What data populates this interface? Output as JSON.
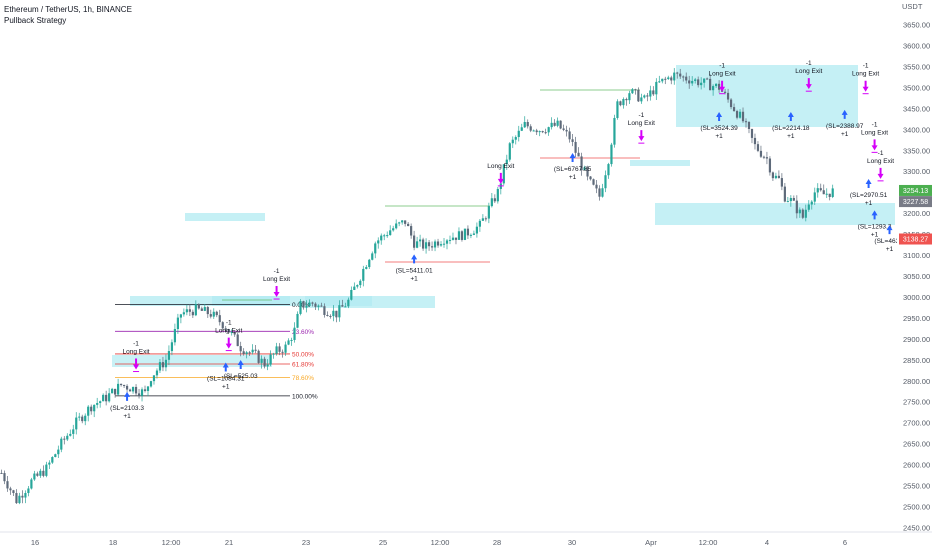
{
  "header": {
    "title": "Ethereum / TetherUS, 1h, BINANCE",
    "subtitle": "Pullback Strategy"
  },
  "colors": {
    "up": "#26a69a",
    "down": "#5e6a7a",
    "zone": "#b2ebf2",
    "buy_arrow": "#2962ff",
    "sell_arrow": "#d500f9",
    "last_price_bg": "#4caf50",
    "current_bg": "#787b86",
    "stop_bg": "#ef5350"
  },
  "chart_data": {
    "type": "candlestick",
    "currency_label": "USDT",
    "x_labels": [
      "16",
      "18",
      "12:00",
      "21",
      "23",
      "25",
      "12:00",
      "28",
      "30",
      "Apr",
      "12:00",
      "4",
      "6"
    ],
    "y_ticks": [
      2450,
      2500,
      2550,
      2600,
      2650,
      2700,
      2750,
      2800,
      2850,
      2900,
      2950,
      3000,
      3050,
      3100,
      3150,
      3200,
      3250,
      3300,
      3350,
      3400,
      3450,
      3500,
      3550,
      3600,
      3650
    ],
    "ylim": [
      2420,
      3680
    ],
    "price_path": [
      [
        0,
        2580
      ],
      [
        5,
        2515
      ],
      [
        10,
        2560
      ],
      [
        15,
        2590
      ],
      [
        20,
        2650
      ],
      [
        25,
        2700
      ],
      [
        30,
        2740
      ],
      [
        35,
        2760
      ],
      [
        40,
        2790
      ],
      [
        45,
        2780
      ],
      [
        48,
        2770
      ],
      [
        50,
        2810
      ],
      [
        55,
        2850
      ],
      [
        60,
        2960
      ],
      [
        65,
        2970
      ],
      [
        70,
        2960
      ],
      [
        75,
        2930
      ],
      [
        80,
        2880
      ],
      [
        85,
        2860
      ],
      [
        88,
        2840
      ],
      [
        92,
        2870
      ],
      [
        95,
        2880
      ],
      [
        98,
        2920
      ],
      [
        100,
        2980
      ],
      [
        104,
        2985
      ],
      [
        108,
        2970
      ],
      [
        112,
        2960
      ],
      [
        116,
        2990
      ],
      [
        120,
        3050
      ],
      [
        125,
        3130
      ],
      [
        130,
        3160
      ],
      [
        135,
        3180
      ],
      [
        138,
        3130
      ],
      [
        142,
        3120
      ],
      [
        148,
        3140
      ],
      [
        155,
        3150
      ],
      [
        160,
        3170
      ],
      [
        163,
        3210
      ],
      [
        166,
        3250
      ],
      [
        170,
        3360
      ],
      [
        175,
        3410
      ],
      [
        180,
        3400
      ],
      [
        186,
        3410
      ],
      [
        190,
        3380
      ],
      [
        193,
        3330
      ],
      [
        196,
        3280
      ],
      [
        200,
        3240
      ],
      [
        203,
        3330
      ],
      [
        206,
        3460
      ],
      [
        210,
        3490
      ],
      [
        215,
        3470
      ],
      [
        220,
        3510
      ],
      [
        225,
        3530
      ],
      [
        230,
        3520
      ],
      [
        235,
        3510
      ],
      [
        240,
        3500
      ],
      [
        244,
        3460
      ],
      [
        248,
        3420
      ],
      [
        252,
        3360
      ],
      [
        256,
        3330
      ],
      [
        258,
        3290
      ],
      [
        260,
        3280
      ],
      [
        262,
        3240
      ],
      [
        264,
        3230
      ],
      [
        266,
        3210
      ],
      [
        268,
        3190
      ],
      [
        270,
        3230
      ],
      [
        272,
        3250
      ],
      [
        275,
        3245
      ],
      [
        278,
        3252
      ]
    ],
    "stop_levels": [
      {
        "label": "(SL=2103.3",
        "sub": "+1",
        "bar": 42,
        "price": 2752
      },
      {
        "label": "(SL=1084.31",
        "sub": "+1",
        "bar": 75,
        "price": 2822
      },
      {
        "label": "(SL=525.03",
        "sub": "",
        "bar": 80,
        "price": 2828
      },
      {
        "label": "(SL=5411.01",
        "sub": "+1",
        "bar": 138,
        "price": 3080
      },
      {
        "label": "(SL=6767.85",
        "sub": "+1",
        "bar": 191,
        "price": 3322
      },
      {
        "label": "(SL=3524.39",
        "sub": "+1",
        "bar": 240,
        "price": 3420
      },
      {
        "label": "(SL=2214.18",
        "sub": "+1",
        "bar": 264,
        "price": 3420
      },
      {
        "label": "(SL=2388.97",
        "sub": "+1",
        "bar": 282,
        "price": 3425
      },
      {
        "label": "(SL=2970.51",
        "sub": "+1",
        "bar": 290,
        "price": 3260
      },
      {
        "label": "(SL=1293.3",
        "sub": "+1",
        "bar": 292,
        "price": 3185
      },
      {
        "label": "(SL=4634.",
        "sub": "+1",
        "bar": 297,
        "price": 3150
      }
    ],
    "exit_labels": [
      {
        "label": "Long Exit",
        "top": "-1",
        "bar": 45,
        "price": 2865
      },
      {
        "label": "Long Exit",
        "top": "-1",
        "bar": 76,
        "price": 2915
      },
      {
        "label": "Long Exit",
        "top": "-1",
        "bar": 92,
        "price": 3038
      },
      {
        "label": "Long Exit",
        "top": "",
        "bar": 167,
        "price": 3308
      },
      {
        "label": "Long Exit",
        "top": "-1",
        "bar": 214,
        "price": 3410
      },
      {
        "label": "Long Exit",
        "top": "-1",
        "bar": 241,
        "price": 3528
      },
      {
        "label": "Long Exit",
        "top": "-1",
        "bar": 270,
        "price": 3534
      },
      {
        "label": "Long Exit",
        "top": "-1",
        "bar": 289,
        "price": 3528
      },
      {
        "label": "Long Exit",
        "top": "-1",
        "bar": 292,
        "price": 3388
      },
      {
        "label": "Long Exit",
        "top": "-1",
        "bar": 294,
        "price": 3320
      }
    ],
    "fib_levels": [
      {
        "label": "0.00%",
        "price": 2982,
        "color": "#131722"
      },
      {
        "label": "23.60%",
        "price": 2918,
        "color": "#9c27b0"
      },
      {
        "label": "50.00%",
        "price": 2864,
        "color": "#e53935"
      },
      {
        "label": "61.80%",
        "price": 2840,
        "color": "#e53935"
      },
      {
        "label": "78.60%",
        "price": 2808,
        "color": "#f9a825"
      },
      {
        "label": "100.00%",
        "price": 2764,
        "color": "#131722"
      }
    ],
    "price_labels": {
      "last": "3254.13",
      "current": "3227.58",
      "stop": "3138.27",
      "last_value": 3254.13,
      "current_value": 3227.58,
      "stop_value": 3138.27
    }
  }
}
